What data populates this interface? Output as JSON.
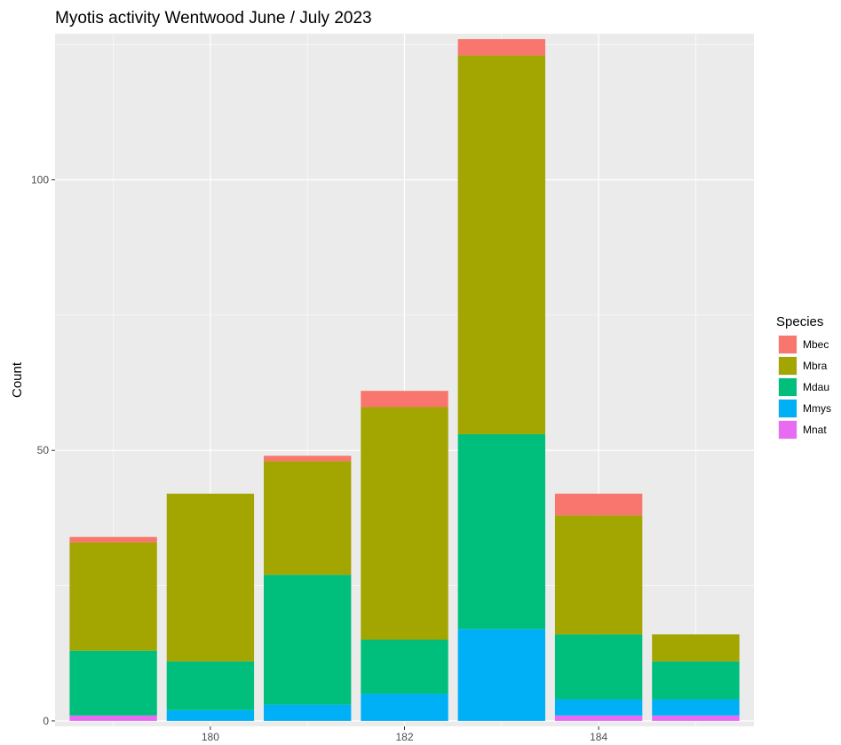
{
  "chart_data": {
    "type": "bar",
    "stacked": true,
    "title": "Myotis activity Wentwood June / July 2023",
    "xlabel": "",
    "ylabel": "Count",
    "x": [
      179,
      180,
      181,
      182,
      183,
      184,
      185
    ],
    "xlim": [
      178.4,
      185.6
    ],
    "ylim": [
      -1,
      127
    ],
    "x_ticks": [
      180,
      182,
      184
    ],
    "x_tick_labels": [
      "180",
      "182",
      "184"
    ],
    "y_ticks": [
      0,
      50,
      100
    ],
    "y_tick_labels": [
      "0",
      "50",
      "100"
    ],
    "grid": true,
    "legend": {
      "title": "Species",
      "placement": "right"
    },
    "stack_order": [
      "Mnat",
      "Mmys",
      "Mdau",
      "Mbra",
      "Mbec"
    ],
    "series": [
      {
        "name": "Mbec",
        "color": "#F8766D",
        "values": [
          1,
          0,
          1,
          3,
          3,
          4,
          0
        ]
      },
      {
        "name": "Mbra",
        "color": "#A3A500",
        "values": [
          20,
          31,
          21,
          43,
          70,
          22,
          5
        ]
      },
      {
        "name": "Mdau",
        "color": "#00BF7D",
        "values": [
          12,
          9,
          24,
          10,
          36,
          12,
          7
        ]
      },
      {
        "name": "Mmys",
        "color": "#00B0F6",
        "values": [
          0,
          2,
          3,
          5,
          17,
          3,
          3
        ]
      },
      {
        "name": "Mnat",
        "color": "#E76BF3",
        "values": [
          1,
          0,
          0,
          0,
          0,
          1,
          1
        ]
      }
    ]
  }
}
